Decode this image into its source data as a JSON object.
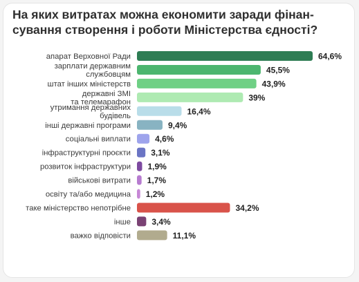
{
  "chart_data": {
    "type": "bar",
    "orientation": "horizontal",
    "title": "На яких витратах можна економити заради фінан-\nсування створення і роботи Міністерства єдності?",
    "value_suffix": "%",
    "categories": [
      "апарат Верховної Ради",
      "зарплати державним\nслужбовцям",
      "штат інших міністерств",
      "державні ЗМІ\nта телемарафон",
      "утримання державних\nбудівель",
      "інші державні програми",
      "соціальні виплати",
      "інфраструктурні проєкти",
      "розвиток інфраструктури",
      "військові витрати",
      "освіту та/або медицина",
      "таке міністерство непотрібне",
      "інше",
      "важко відповісти"
    ],
    "values": [
      64.6,
      45.5,
      43.9,
      39,
      16.4,
      9.4,
      4.6,
      3.1,
      1.9,
      1.7,
      1.2,
      34.2,
      3.4,
      11.1
    ],
    "value_labels": [
      "64,6%",
      "45,5%",
      "43,9%",
      "39%",
      "16,4%",
      "9,4%",
      "4,6%",
      "3,1%",
      "1,9%",
      "1,7%",
      "1,2%",
      "34,2%",
      "3,4%",
      "11,1%"
    ],
    "colors": [
      "#2e7d54",
      "#4cb66f",
      "#6fd085",
      "#aeeab2",
      "#b9dde9",
      "#88b3c2",
      "#9ea4ec",
      "#6b75c4",
      "#7d4aa0",
      "#b77cd0",
      "#c788d6",
      "#d9534a",
      "#7a4274",
      "#b1ab8e"
    ],
    "xlim": [
      0,
      64.6
    ],
    "grid": false,
    "legend": "none"
  }
}
